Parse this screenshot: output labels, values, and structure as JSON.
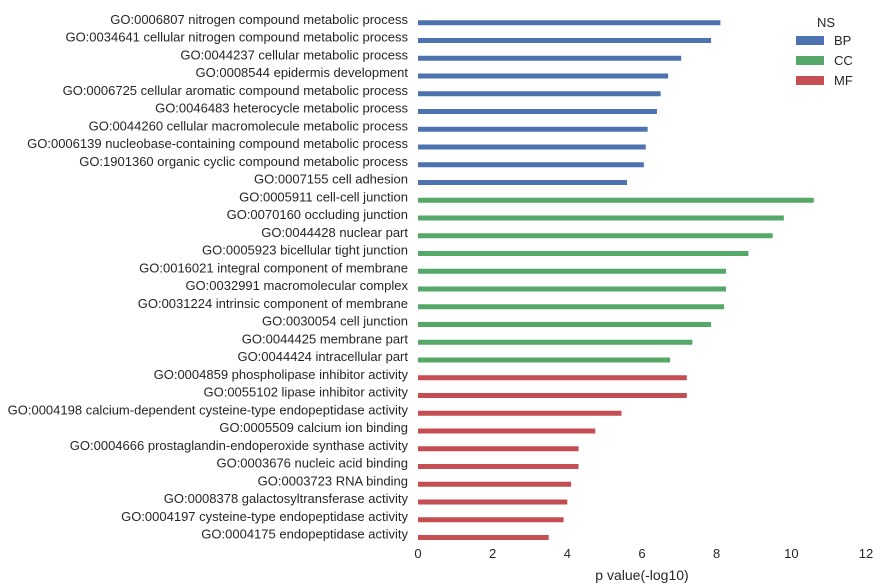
{
  "chart_data": {
    "type": "bar",
    "orientation": "horizontal",
    "xlabel": "p value(-log10)",
    "ylabel": "",
    "xlim": [
      0,
      12
    ],
    "xticks": [
      "0",
      "2",
      "4",
      "6",
      "8",
      "10",
      "12"
    ],
    "grid": false,
    "legend": {
      "title": "NS",
      "position": "top-right",
      "entries": [
        {
          "name": "BP",
          "color": "#4c72b0"
        },
        {
          "name": "CC",
          "color": "#55a868"
        },
        {
          "name": "MF",
          "color": "#c44e52"
        }
      ]
    },
    "categories": [
      "GO:0006807 nitrogen compound metabolic process",
      "GO:0034641 cellular nitrogen compound metabolic process",
      "GO:0044237 cellular metabolic process",
      "GO:0008544 epidermis development",
      "GO:0006725 cellular aromatic compound metabolic process",
      "GO:0046483 heterocycle metabolic process",
      "GO:0044260 cellular macromolecule metabolic process",
      "GO:0006139 nucleobase-containing compound metabolic process",
      "GO:1901360 organic cyclic compound metabolic process",
      "GO:0007155 cell adhesion",
      "GO:0005911 cell-cell junction",
      "GO:0070160 occluding junction",
      "GO:0044428 nuclear part",
      "GO:0005923 bicellular tight junction",
      "GO:0016021 integral component of membrane",
      "GO:0032991 macromolecular complex",
      "GO:0031224 intrinsic component of membrane",
      "GO:0030054 cell junction",
      "GO:0044425 membrane part",
      "GO:0044424 intracellular part",
      "GO:0004859 phospholipase inhibitor activity",
      "GO:0055102 lipase inhibitor activity",
      "GO:0004198 calcium-dependent cysteine-type endopeptidase activity",
      "GO:0005509 calcium ion binding",
      "GO:0004666 prostaglandin-endoperoxide synthase activity",
      "GO:0003676 nucleic acid binding",
      "GO:0003723 RNA binding",
      "GO:0008378 galactosyltransferase activity",
      "GO:0004197 cysteine-type endopeptidase activity",
      "GO:0004175 endopeptidase activity"
    ],
    "values": [
      8.1,
      7.85,
      7.05,
      6.7,
      6.5,
      6.4,
      6.15,
      6.1,
      6.05,
      5.6,
      10.6,
      9.8,
      9.5,
      8.85,
      8.25,
      8.25,
      8.2,
      7.85,
      7.35,
      6.75,
      7.2,
      7.2,
      5.45,
      4.75,
      4.3,
      4.3,
      4.1,
      4.0,
      3.9,
      3.5
    ],
    "groups": [
      "BP",
      "BP",
      "BP",
      "BP",
      "BP",
      "BP",
      "BP",
      "BP",
      "BP",
      "BP",
      "CC",
      "CC",
      "CC",
      "CC",
      "CC",
      "CC",
      "CC",
      "CC",
      "CC",
      "CC",
      "MF",
      "MF",
      "MF",
      "MF",
      "MF",
      "MF",
      "MF",
      "MF",
      "MF",
      "MF"
    ]
  }
}
